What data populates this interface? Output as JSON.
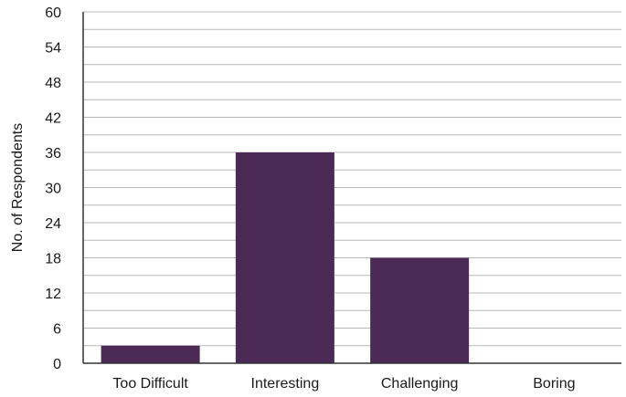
{
  "chart_data": {
    "type": "bar",
    "categories": [
      "Too Difficult",
      "Interesting",
      "Challenging",
      "Boring"
    ],
    "values": [
      3,
      36,
      18,
      0
    ],
    "title": "",
    "xlabel": "",
    "ylabel": "No. of Respondents",
    "ylim": [
      0,
      60
    ],
    "yticks": [
      0,
      6,
      12,
      18,
      24,
      30,
      36,
      42,
      48,
      54,
      60
    ],
    "grid": true,
    "legend": "none",
    "bar_color": "#4b2a55",
    "grid_color": "#b8b8b8",
    "axis_color": "#333333"
  }
}
